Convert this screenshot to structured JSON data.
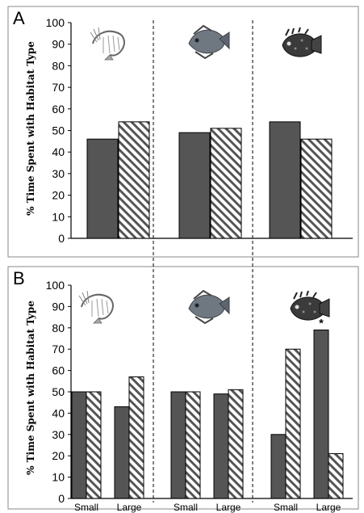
{
  "figure": {
    "image_width": 451,
    "image_height": 635
  },
  "chart_data": [
    {
      "panel": "A",
      "type": "bar",
      "groups": [
        {
          "icon": "shrimp-icon",
          "values": [
            46,
            54
          ]
        },
        {
          "icon": "flatfish-icon",
          "values": [
            49,
            51
          ]
        },
        {
          "icon": "scorpionfish-icon",
          "values": [
            54,
            46
          ]
        }
      ],
      "bar_styles": [
        "solid",
        "hatched"
      ],
      "ylabel": "% Time Spent with Habitat Type",
      "ylim": [
        0,
        100
      ],
      "yticks": [
        0,
        10,
        20,
        30,
        40,
        50,
        60,
        70,
        80,
        90,
        100
      ],
      "xticklabels": []
    },
    {
      "panel": "B",
      "type": "bar",
      "groups": [
        {
          "icon": "shrimp-icon",
          "values": [
            50,
            50,
            43,
            57
          ]
        },
        {
          "icon": "flatfish-icon",
          "values": [
            50,
            50,
            49,
            51
          ]
        },
        {
          "icon": "scorpionfish-icon",
          "values": [
            30,
            70,
            79,
            21
          ],
          "annotation": {
            "bar": 2,
            "text": "*"
          }
        }
      ],
      "bar_styles": [
        "solid",
        "hatched",
        "solid",
        "hatched"
      ],
      "ylabel": "% Time Spent with Habitat Type",
      "ylim": [
        0,
        100
      ],
      "yticks": [
        0,
        10,
        20,
        30,
        40,
        50,
        60,
        70,
        80,
        90,
        100
      ],
      "xticklabels": [
        "Small",
        "Large",
        "Small",
        "Large",
        "Small",
        "Large"
      ]
    }
  ],
  "colors": {
    "solid_bar": "#555555",
    "hatch": "#555555",
    "axis": "#000000",
    "frame": "#888888"
  }
}
